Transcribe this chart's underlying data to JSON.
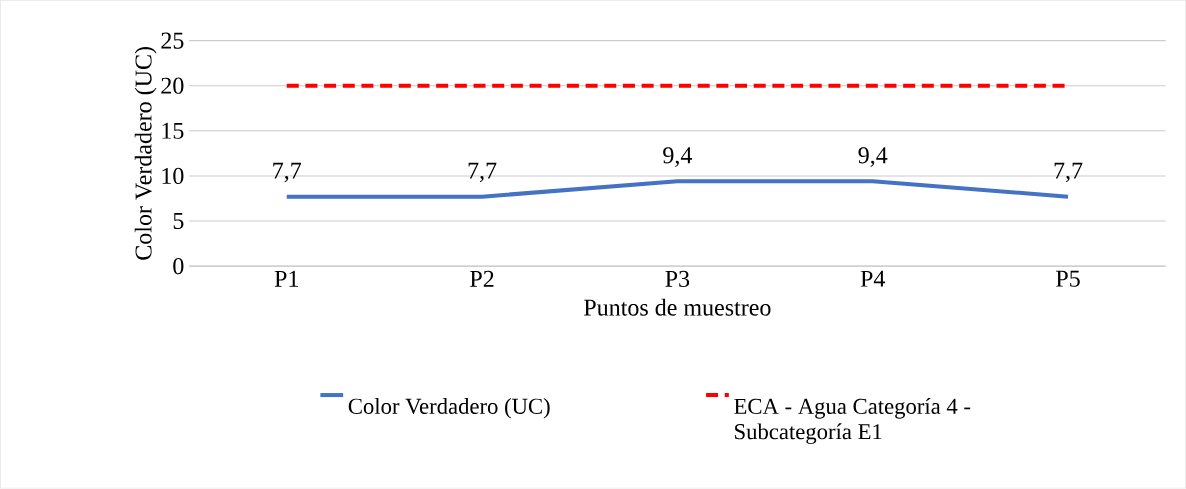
{
  "chart_data": {
    "type": "line",
    "xlabel": "Puntos de muestreo",
    "ylabel": "Color Verdadero (UC)",
    "categories": [
      "P1",
      "P2",
      "P3",
      "P4",
      "P5"
    ],
    "series": [
      {
        "name": "Color Verdadero (UC)",
        "color": "#4472c4",
        "line_style": "solid",
        "values": [
          7.7,
          7.7,
          9.4,
          9.4,
          7.7
        ],
        "value_labels": [
          "7,7",
          "7,7",
          "9,4",
          "9,4",
          "7,7"
        ]
      },
      {
        "name": "ECA - Agua Categoría 4 - Subcategoría E1",
        "color": "#ff0000",
        "line_style": "dashed",
        "values": [
          20,
          20,
          20,
          20,
          20
        ]
      }
    ],
    "ylim": [
      0,
      25
    ],
    "yticks": [
      0,
      5,
      10,
      15,
      20,
      25
    ],
    "grid": "y",
    "legend": "bottom",
    "marker": "none"
  }
}
